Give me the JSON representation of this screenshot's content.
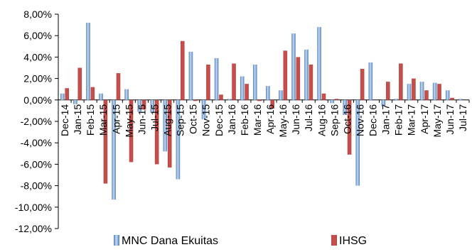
{
  "chart_data": {
    "type": "bar",
    "categories": [
      "Dec-14",
      "Jan-15",
      "Feb-15",
      "Mar-15",
      "Apr-15",
      "May-15",
      "Jun-15",
      "Jul-15",
      "Aug-15",
      "Sep-15",
      "Oct-15",
      "Nov-15",
      "Dec-15",
      "Jan-16",
      "Feb-16",
      "Mar-16",
      "Apr-16",
      "May-16",
      "Jun-16",
      "Jul-16",
      "Aug-16",
      "Sep-16",
      "Oct-16",
      "Nov-16",
      "Dec-16",
      "Jan-17",
      "Feb-17",
      "Mar-17",
      "Apr-17",
      "May-17",
      "Jun-17",
      "Jul-17"
    ],
    "series": [
      {
        "name": "MNC Dana Ekuitas",
        "color": "#4f81bd",
        "values": [
          0.6,
          -0.4,
          7.2,
          0.6,
          -9.3,
          1.0,
          -1.1,
          -1.2,
          -4.8,
          -7.4,
          4.5,
          -1.8,
          3.9,
          0.1,
          2.2,
          3.3,
          1.3,
          0.9,
          6.2,
          4.7,
          6.8,
          -0.3,
          -1.4,
          -8.0,
          3.5,
          -0.6,
          0.1,
          1.5,
          1.7,
          1.6,
          0.9,
          0.1
        ]
      },
      {
        "name": "IHSG",
        "color": "#c0504d",
        "values": [
          1.1,
          3.0,
          1.2,
          -7.8,
          2.5,
          -5.8,
          -0.9,
          -6.0,
          -6.3,
          5.5,
          -0.1,
          3.3,
          0.5,
          3.4,
          1.5,
          -0.1,
          -0.8,
          4.6,
          4.0,
          3.3,
          0.6,
          0.1,
          -5.1,
          2.9,
          0.0,
          1.7,
          3.4,
          2.0,
          0.9,
          1.5,
          0.2,
          0.0
        ]
      }
    ],
    "ylim": [
      -12,
      8
    ],
    "y_ticks": [
      "8,00%",
      "6,00%",
      "4,00%",
      "2,00%",
      "0,00%",
      "-2,00%",
      "-4,00%",
      "-6,00%",
      "-8,00%",
      "-10,00%",
      "-12,00%"
    ],
    "y_tick_values": [
      8,
      6,
      4,
      2,
      0,
      -2,
      -4,
      -6,
      -8,
      -10,
      -12
    ],
    "legend_position": "bottom",
    "grid": false
  }
}
